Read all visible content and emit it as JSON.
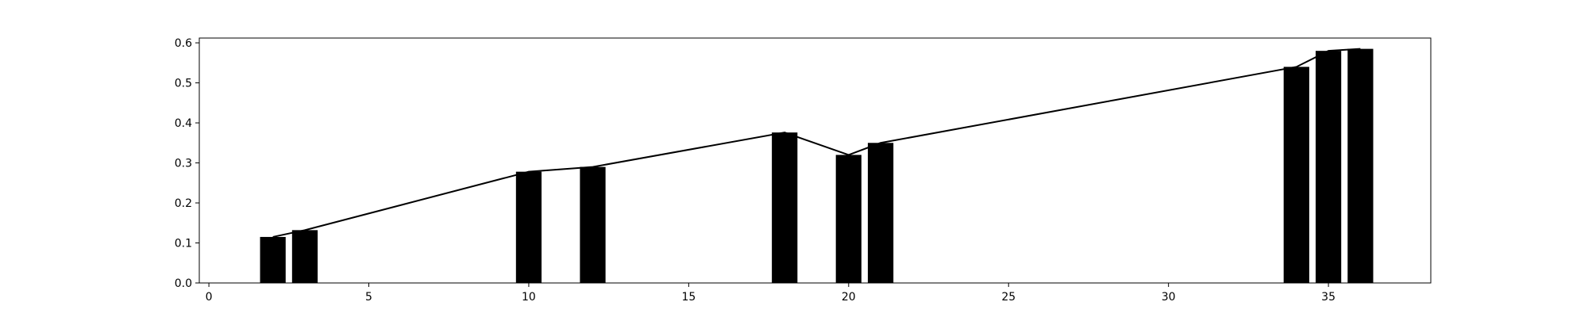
{
  "chart_data": {
    "type": "bar",
    "title": "",
    "xlabel": "",
    "ylabel": "",
    "xlim": [
      -0.3,
      38.2
    ],
    "ylim": [
      0.0,
      0.612
    ],
    "grid": false,
    "x_ticks": [
      0,
      5,
      10,
      15,
      20,
      25,
      30,
      35
    ],
    "y_ticks": [
      0.0,
      0.1,
      0.2,
      0.3,
      0.4,
      0.5,
      0.6
    ],
    "y_tick_labels": [
      "0.0",
      "0.1",
      "0.2",
      "0.3",
      "0.4",
      "0.5",
      "0.6"
    ],
    "bar_width_data": 0.8,
    "bars": {
      "x": [
        2,
        3,
        10,
        12,
        18,
        20,
        21,
        34,
        35,
        36
      ],
      "values": [
        0.115,
        0.132,
        0.278,
        0.29,
        0.376,
        0.32,
        0.35,
        0.54,
        0.58,
        0.585
      ]
    },
    "line": {
      "x": [
        2,
        3,
        10,
        12,
        18,
        20,
        21,
        34,
        35,
        36
      ],
      "values": [
        0.115,
        0.132,
        0.278,
        0.29,
        0.376,
        0.32,
        0.35,
        0.54,
        0.58,
        0.585
      ]
    },
    "colors": {
      "bar": "#000000",
      "line": "#000000",
      "axes": "#000000",
      "background": "#ffffff"
    }
  }
}
